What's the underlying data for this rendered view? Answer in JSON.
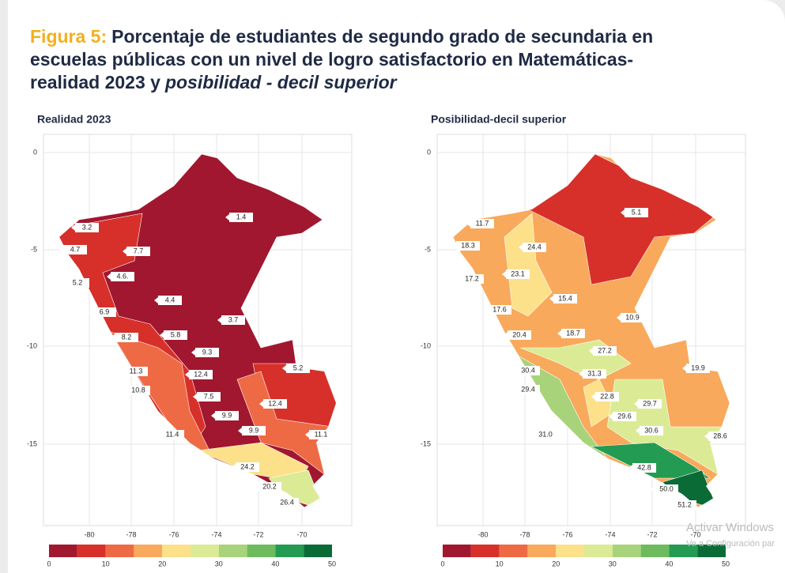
{
  "header": {
    "figure_label": "Figura 5:",
    "title_line_1": "Porcentaje de estudiantes de segundo grado de secundaria en",
    "title_line_2": "escuelas públicas con un nivel de logro satisfactorio en Matemáticas-",
    "title_line_3": "realidad 2023 y",
    "title_italic": "posibilidad - decil superior"
  },
  "maps": [
    {
      "title": "Realidad 2023",
      "yticks": [
        "0",
        "-5",
        "-10",
        "-15"
      ],
      "xticks": [
        "-80",
        "-78",
        "-76",
        "-74",
        "-72",
        "-70"
      ],
      "colorbar_ticks": [
        "0",
        "10",
        "20",
        "30",
        "40",
        "50"
      ],
      "labels": [
        "3.2",
        "4.7",
        "7.7",
        "5.2",
        "4.6.",
        "1.4",
        "4.4",
        "6.9",
        "3.7",
        "8.2",
        "5.8",
        "9.3",
        "5.2",
        "11.3",
        "12.4",
        "10.8",
        "7.5",
        "12.4",
        "9.9",
        "9.9",
        "11.4",
        "11.1",
        "24.2",
        "20.2",
        "26.4"
      ]
    },
    {
      "title": "Posibilidad-decil superior",
      "yticks": [
        "0",
        "-5",
        "-10",
        "-15"
      ],
      "xticks": [
        "-80",
        "-78",
        "-76",
        "-74",
        "-72",
        "-70"
      ],
      "colorbar_ticks": [
        "0",
        "10",
        "20",
        "30",
        "40",
        "50"
      ],
      "labels": [
        "11.7",
        "18.3",
        "24.4",
        "23.1",
        "17.2",
        "5.1",
        "15.4",
        "17.6",
        "10.9",
        "20.4",
        "18.7",
        "27.2",
        "31.3",
        "19.9",
        "30.4",
        "29.4",
        "22.8",
        "29.7",
        "29.6",
        "30.6",
        "31.0",
        "28.6",
        "42.8",
        "50.0",
        "51.2"
      ]
    }
  ],
  "watermark": {
    "line_1": "Activar Windows",
    "line_2": "Ve a Configuración par"
  }
}
